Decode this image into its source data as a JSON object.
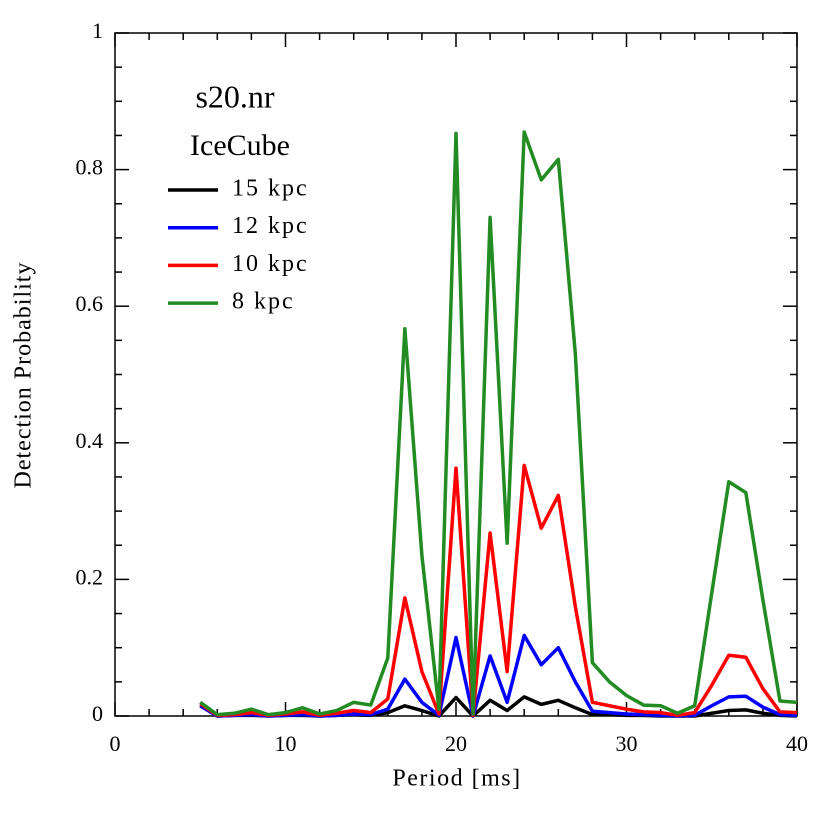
{
  "chart_data": {
    "type": "line",
    "title": "s20.nr",
    "subtitle": "IceCube",
    "x_label": "Period [ms]",
    "y_label": "Detection Probability",
    "x": [
      5,
      6,
      7,
      8,
      9,
      10,
      11,
      12,
      13,
      14,
      15,
      16,
      17,
      18,
      19,
      20,
      21,
      22,
      23,
      24,
      25,
      26,
      27,
      28,
      29,
      30,
      31,
      32,
      33,
      34,
      35,
      36,
      37,
      38,
      39,
      40
    ],
    "series": [
      {
        "name": "15 kpc",
        "color": "#000000",
        "values": [
          0.015,
          0,
          0.001,
          0.001,
          0,
          0.001,
          0.001,
          0,
          0.001,
          0.002,
          0.001,
          0.005,
          0.015,
          0.008,
          0,
          0.027,
          0,
          0.023,
          0.008,
          0.028,
          0.017,
          0.023,
          0.012,
          0.002,
          0.002,
          0.001,
          0.001,
          0,
          0,
          0,
          0.004,
          0.008,
          0.009,
          0.004,
          0.001,
          0
        ]
      },
      {
        "name": "12 kpc",
        "color": "#0000ff",
        "values": [
          0.015,
          0,
          0.001,
          0.002,
          0,
          0.001,
          0.002,
          0,
          0.001,
          0.003,
          0.002,
          0.01,
          0.054,
          0.02,
          0.001,
          0.115,
          0,
          0.088,
          0.02,
          0.118,
          0.075,
          0.1,
          0.05,
          0.007,
          0.005,
          0.003,
          0.002,
          0.001,
          0,
          0.001,
          0.015,
          0.028,
          0.029,
          0.013,
          0.002,
          0.001
        ]
      },
      {
        "name": "10 kpc",
        "color": "#ff0000",
        "values": [
          0.018,
          0.001,
          0.002,
          0.005,
          0.001,
          0.003,
          0.006,
          0.001,
          0.004,
          0.008,
          0.005,
          0.025,
          0.173,
          0.065,
          0.003,
          0.363,
          0.001,
          0.268,
          0.065,
          0.367,
          0.275,
          0.323,
          0.16,
          0.02,
          0.015,
          0.01,
          0.006,
          0.005,
          0.001,
          0.005,
          0.045,
          0.089,
          0.086,
          0.04,
          0.006,
          0.005
        ]
      },
      {
        "name": "8 kpc",
        "color": "#228b22",
        "values": [
          0.02,
          0.002,
          0.004,
          0.01,
          0.002,
          0.005,
          0.012,
          0.003,
          0.008,
          0.02,
          0.016,
          0.085,
          0.567,
          0.235,
          0.01,
          0.853,
          0.003,
          0.73,
          0.253,
          0.855,
          0.785,
          0.815,
          0.53,
          0.078,
          0.05,
          0.03,
          0.016,
          0.015,
          0.004,
          0.015,
          0.18,
          0.343,
          0.327,
          0.17,
          0.022,
          0.02
        ]
      }
    ],
    "xlim": [
      0,
      40
    ],
    "ylim": [
      0,
      1
    ],
    "xticks": [
      0,
      10,
      20,
      30,
      40
    ],
    "yticks": [
      0,
      0.2,
      0.4,
      0.6,
      0.8,
      1
    ],
    "xminorticks": [
      2,
      4,
      6,
      8,
      12,
      14,
      16,
      18,
      22,
      24,
      26,
      28,
      32,
      34,
      36,
      38
    ],
    "yminorticks": [
      0.05,
      0.1,
      0.15,
      0.25,
      0.3,
      0.35,
      0.45,
      0.5,
      0.55,
      0.65,
      0.7,
      0.75,
      0.85,
      0.9,
      0.95
    ]
  }
}
